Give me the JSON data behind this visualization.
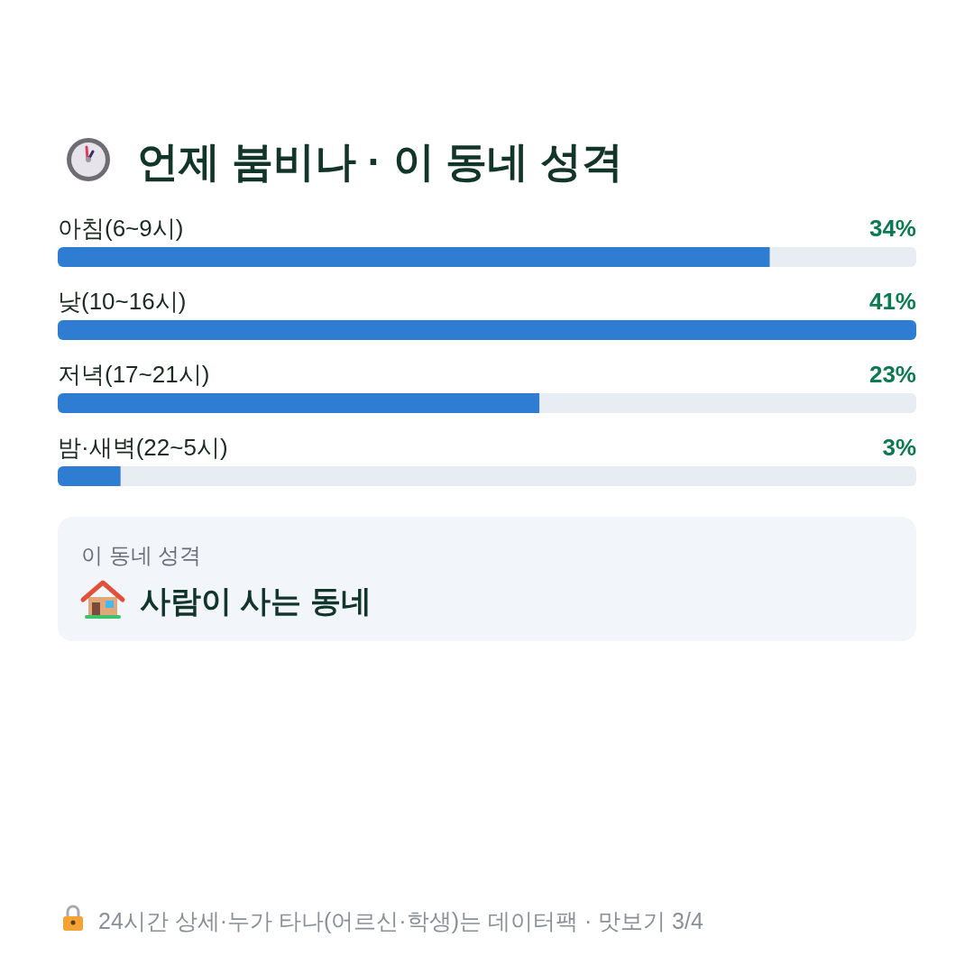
{
  "chart_data": {
    "type": "bar",
    "orientation": "horizontal",
    "title": "언제 붐비나 · 이 동네 성격",
    "categories": [
      "아침(6~9시)",
      "낮(10~16시)",
      "저녁(17~21시)",
      "밤·새벽(22~5시)"
    ],
    "values": [
      34,
      41,
      23,
      3
    ],
    "value_labels": [
      "34%",
      "41%",
      "23%",
      "3%"
    ],
    "color": "#2e7dd3",
    "xlim": [
      0,
      41
    ],
    "tick_labels": "y",
    "annotations": [
      "이 동네 성격",
      "사람이 사는 동네",
      "24시간 상세·누가 타나(어르신·학생)는 데이터팩 · 맛보기 3/4"
    ]
  }
}
